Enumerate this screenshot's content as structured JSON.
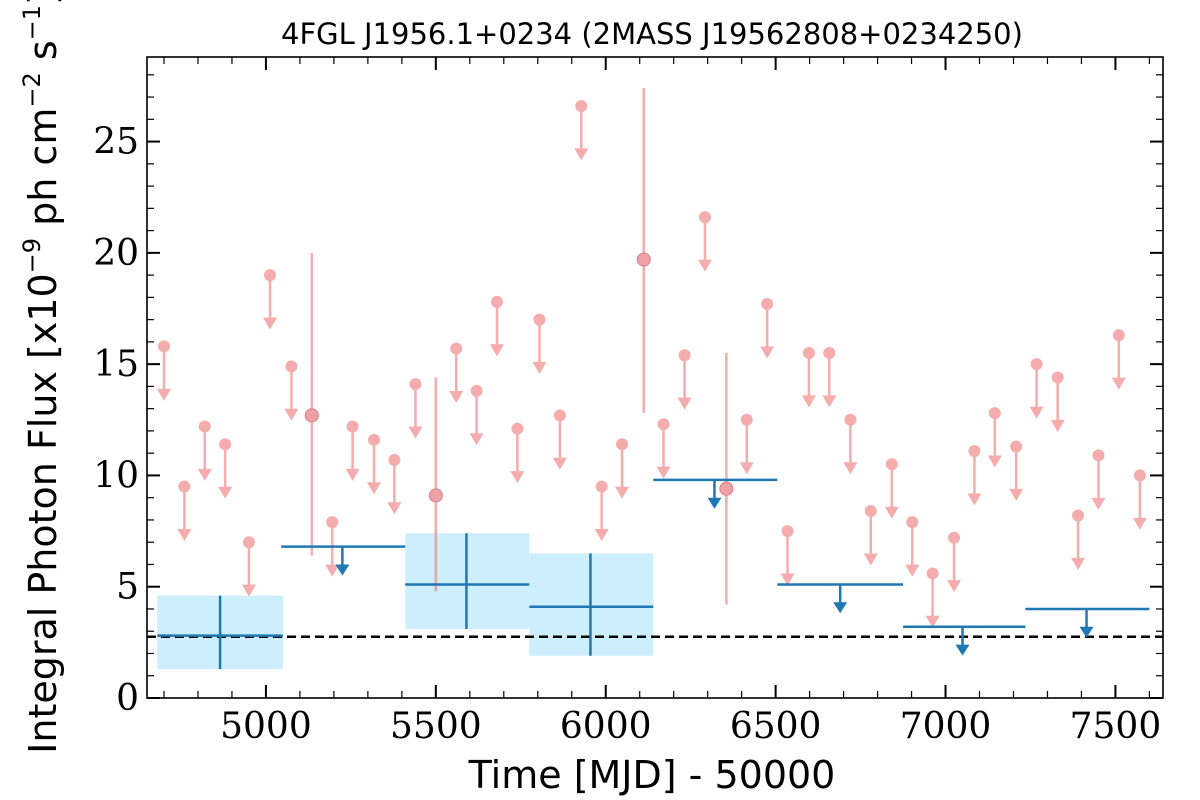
{
  "chart_data": {
    "type": "scatter",
    "title": "4FGL J1956.1+0234 (2MASS J19562808+0234250)",
    "xlabel": "Time [MJD] - 50000",
    "ylabel_main": "Integral Photon Flux [x10",
    "ylabel_exponent": "−9",
    "ylabel_unit_a": " ph cm",
    "ylabel_unit_a_exponent": "−2",
    "ylabel_unit_b": " s",
    "ylabel_unit_b_exponent": "−1",
    "ylabel_close": "]",
    "xlim": [
      4650,
      7640
    ],
    "ylim": [
      0,
      28.8
    ],
    "xticks": [
      5000,
      5500,
      6000,
      6500,
      7000,
      7500
    ],
    "yticks": [
      0,
      5,
      10,
      15,
      20,
      25
    ],
    "grid": false,
    "reference_level": 2.75,
    "colors": {
      "short_bins": "#f08080",
      "long_bins": "#1f77b4",
      "long_bin_band": "#cdeefc",
      "reference_line": "#000000"
    },
    "short_bin_upper_limits": [
      {
        "x": 4700,
        "y": 15.8
      },
      {
        "x": 4760,
        "y": 9.5
      },
      {
        "x": 4820,
        "y": 12.2
      },
      {
        "x": 4880,
        "y": 11.4
      },
      {
        "x": 4950,
        "y": 7.0
      },
      {
        "x": 5012,
        "y": 19.0
      },
      {
        "x": 5075,
        "y": 14.9
      },
      {
        "x": 5195,
        "y": 7.9
      },
      {
        "x": 5255,
        "y": 12.2
      },
      {
        "x": 5318,
        "y": 11.6
      },
      {
        "x": 5378,
        "y": 10.7
      },
      {
        "x": 5440,
        "y": 14.1
      },
      {
        "x": 5560,
        "y": 15.7
      },
      {
        "x": 5620,
        "y": 13.8
      },
      {
        "x": 5680,
        "y": 17.8
      },
      {
        "x": 5740,
        "y": 12.1
      },
      {
        "x": 5805,
        "y": 17.0
      },
      {
        "x": 5865,
        "y": 12.7
      },
      {
        "x": 5928,
        "y": 26.6
      },
      {
        "x": 5988,
        "y": 9.5
      },
      {
        "x": 6048,
        "y": 11.4
      },
      {
        "x": 6170,
        "y": 12.3
      },
      {
        "x": 6232,
        "y": 15.4
      },
      {
        "x": 6292,
        "y": 21.6
      },
      {
        "x": 6415,
        "y": 12.5
      },
      {
        "x": 6475,
        "y": 17.7
      },
      {
        "x": 6535,
        "y": 7.5
      },
      {
        "x": 6598,
        "y": 15.5
      },
      {
        "x": 6658,
        "y": 15.5
      },
      {
        "x": 6720,
        "y": 12.5
      },
      {
        "x": 6780,
        "y": 8.4
      },
      {
        "x": 6842,
        "y": 10.5
      },
      {
        "x": 6902,
        "y": 7.9
      },
      {
        "x": 6962,
        "y": 5.6
      },
      {
        "x": 7025,
        "y": 7.2
      },
      {
        "x": 7085,
        "y": 11.1
      },
      {
        "x": 7145,
        "y": 12.8
      },
      {
        "x": 7208,
        "y": 11.3
      },
      {
        "x": 7268,
        "y": 15.0
      },
      {
        "x": 7330,
        "y": 14.4
      },
      {
        "x": 7390,
        "y": 8.2
      },
      {
        "x": 7450,
        "y": 10.9
      },
      {
        "x": 7510,
        "y": 16.3
      },
      {
        "x": 7572,
        "y": 10.0
      }
    ],
    "short_bin_detections": [
      {
        "x": 5135,
        "y": 12.7,
        "ylow": 6.4,
        "yhigh": 20.0
      },
      {
        "x": 5500,
        "y": 9.1,
        "ylow": 4.8,
        "yhigh": 14.4
      },
      {
        "x": 6112,
        "y": 19.7,
        "ylow": 12.8,
        "yhigh": 27.4
      },
      {
        "x": 6355,
        "y": 9.4,
        "ylow": 4.2,
        "yhigh": 15.5
      }
    ],
    "long_bin_detections": [
      {
        "x": 4865,
        "xlow": 4680,
        "xhigh": 5050,
        "y": 2.8,
        "ylow": 1.3,
        "yhigh": 4.6
      },
      {
        "x": 5590,
        "xlow": 5410,
        "xhigh": 5775,
        "y": 5.1,
        "ylow": 3.1,
        "yhigh": 7.4
      },
      {
        "x": 5955,
        "xlow": 5775,
        "xhigh": 6140,
        "y": 4.1,
        "ylow": 1.9,
        "yhigh": 6.5
      }
    ],
    "long_bin_upper_limits": [
      {
        "x": 5225,
        "xlow": 5045,
        "xhigh": 5410,
        "y": 6.8
      },
      {
        "x": 6320,
        "xlow": 6140,
        "xhigh": 6505,
        "y": 9.8
      },
      {
        "x": 6690,
        "xlow": 6505,
        "xhigh": 6875,
        "y": 5.1
      },
      {
        "x": 7050,
        "xlow": 6875,
        "xhigh": 7235,
        "y": 3.2
      },
      {
        "x": 7415,
        "xlow": 7235,
        "xhigh": 7600,
        "y": 4.0
      }
    ]
  }
}
